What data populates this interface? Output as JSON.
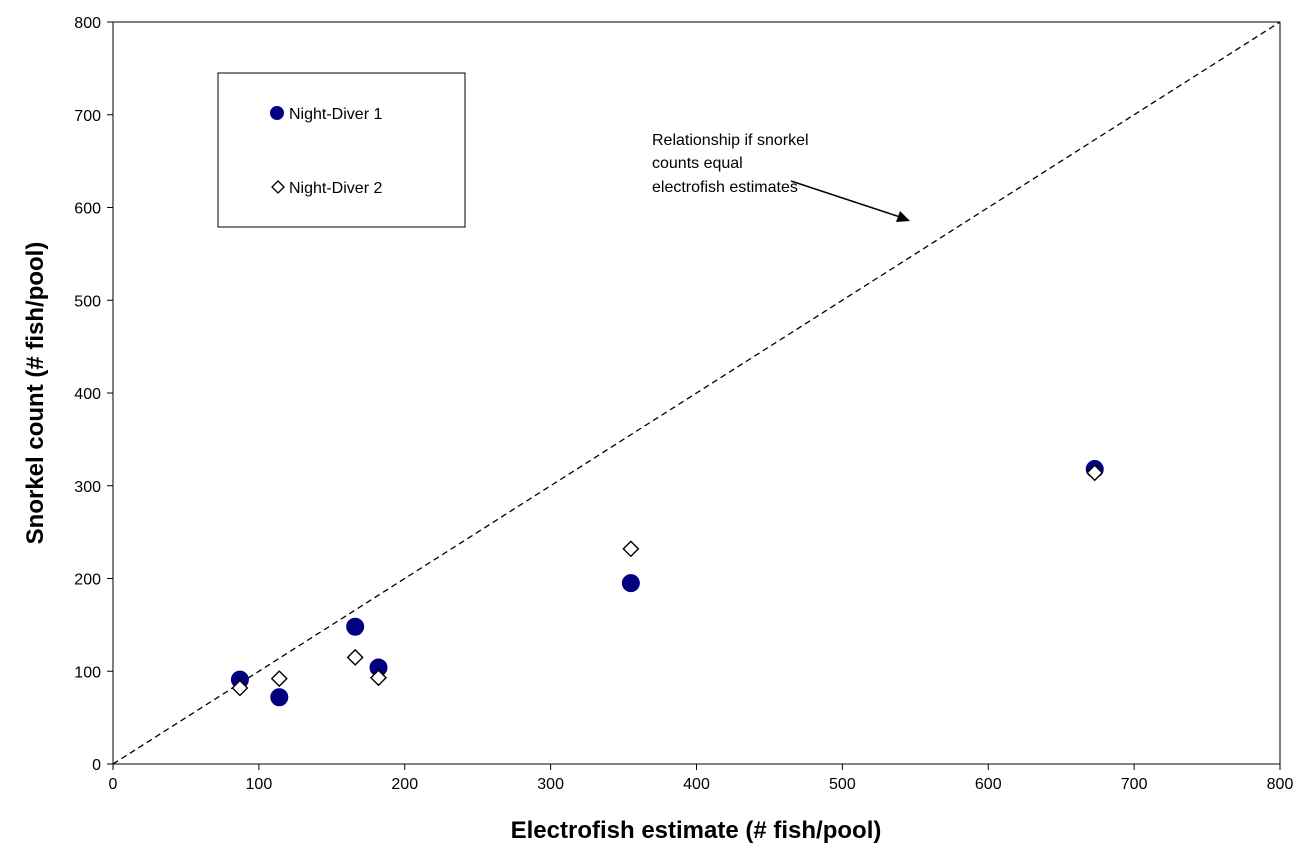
{
  "chart_data": {
    "type": "scatter",
    "title": "",
    "xlabel": "Electrofish estimate (# fish/pool)",
    "ylabel": "Snorkel count (# fish/pool)",
    "xlim": [
      0,
      800
    ],
    "ylim": [
      0,
      800
    ],
    "xticks": [
      "0",
      "100",
      "200",
      "300",
      "400",
      "500",
      "600",
      "700",
      "800"
    ],
    "yticks": [
      "0",
      "100",
      "200",
      "300",
      "400",
      "500",
      "600",
      "700",
      "800"
    ],
    "grid": false,
    "legend_position": "top-left",
    "series": [
      {
        "name": "Night-Diver 1",
        "marker": "filled-circle",
        "color": "#000080",
        "x": [
          87,
          114,
          166,
          182,
          355,
          673
        ],
        "y": [
          91,
          72,
          148,
          104,
          195,
          318
        ]
      },
      {
        "name": "Night-Diver 2",
        "marker": "open-diamond",
        "color": "#000000",
        "x": [
          87,
          114,
          166,
          182,
          355,
          673
        ],
        "y": [
          82,
          92,
          115,
          93,
          232,
          314
        ]
      }
    ],
    "reference_line": {
      "x": [
        0,
        800
      ],
      "y": [
        0,
        800
      ],
      "style": "dashed"
    },
    "annotation": {
      "lines": [
        "Relationship if snorkel",
        "counts equal",
        "electrofish estimates"
      ],
      "points_to": [
        545,
        580
      ]
    }
  }
}
